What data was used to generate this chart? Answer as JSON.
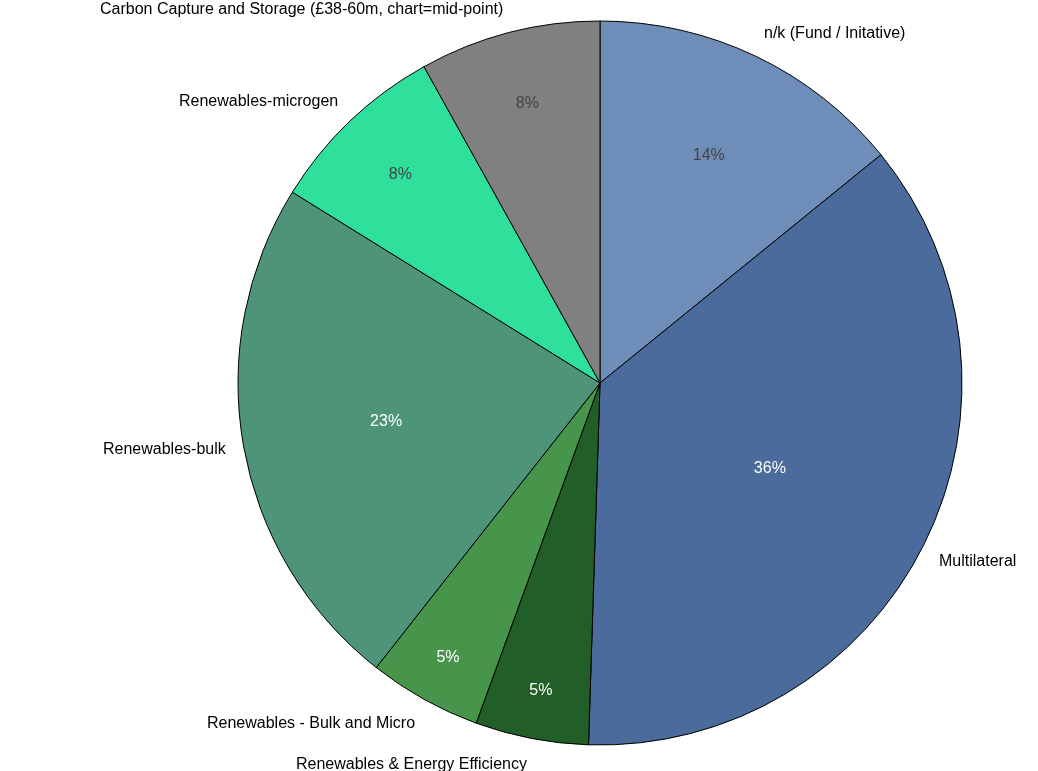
{
  "chart_data": {
    "type": "pie",
    "categories": [
      "n/k (Fund / Initative)",
      "Multilateral",
      "Renewables & Energy Efficiency",
      "Renewables - Bulk and Micro",
      "Renewables-bulk",
      "Renewables-microgen",
      "Carbon Capture and Storage (£38-60m, chart=mid-point)"
    ],
    "values": [
      14,
      36,
      5,
      5,
      23,
      8,
      8
    ],
    "colors": [
      "#6f8db9",
      "#4a6b9b",
      "#225e28",
      "#46954a",
      "#4d9479",
      "#2ee09c",
      "#808080"
    ],
    "value_labels": [
      "14%",
      "36%",
      "5%",
      "5%",
      "23%",
      "8%",
      "8%"
    ],
    "legend": false
  }
}
